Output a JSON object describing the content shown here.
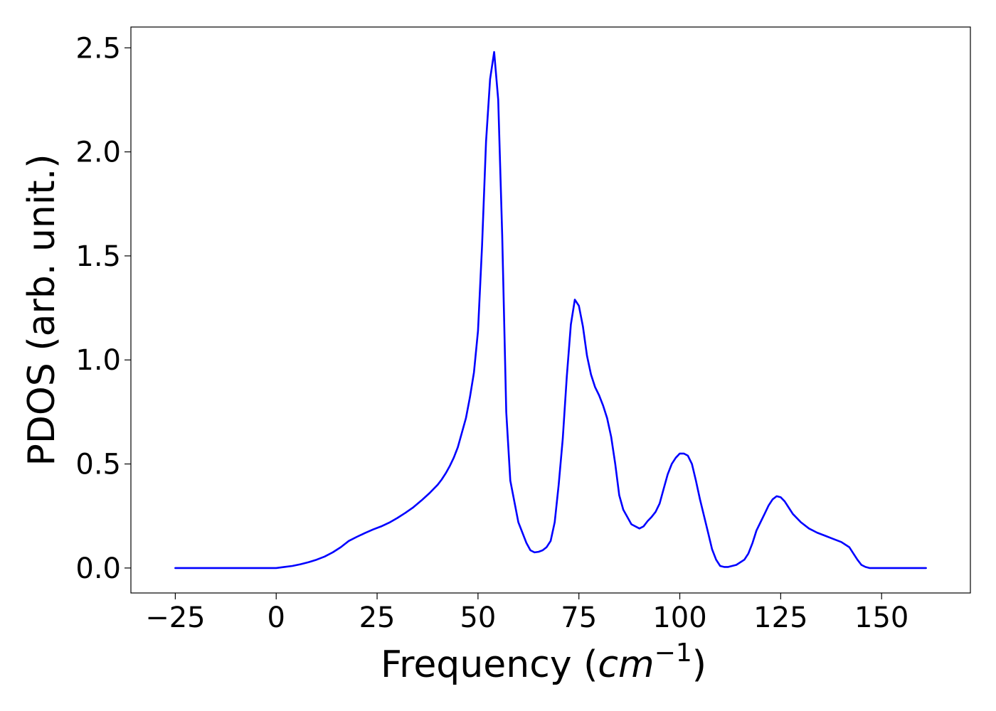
{
  "chart_data": {
    "type": "line",
    "title": "",
    "xlabel": {
      "prefix": "Frequency (",
      "italic": "cm",
      "sup": "−1",
      "suffix": ")"
    },
    "ylabel": "PDOS (arb. unit.)",
    "xlim": [
      -36,
      172
    ],
    "ylim": [
      -0.12,
      2.6
    ],
    "xticks": [
      -25,
      0,
      25,
      50,
      75,
      100,
      125,
      150
    ],
    "xtick_labels": [
      "−25",
      "0",
      "25",
      "50",
      "75",
      "100",
      "125",
      "150"
    ],
    "yticks": [
      0.0,
      0.5,
      1.0,
      1.5,
      2.0,
      2.5
    ],
    "ytick_labels": [
      "0.0",
      "0.5",
      "1.0",
      "1.5",
      "2.0",
      "2.5"
    ],
    "grid": false,
    "legend": false,
    "series": [
      {
        "color": "#0000ff",
        "x": [
          -25,
          -10,
          -5,
          0,
          2,
          4,
          6,
          8,
          10,
          12,
          14,
          16,
          18,
          20,
          22,
          24,
          26,
          28,
          30,
          32,
          34,
          36,
          38,
          40,
          41,
          42,
          43,
          44,
          45,
          46,
          47,
          48,
          49,
          50,
          51,
          52,
          53,
          54,
          55,
          56,
          57,
          58,
          60,
          62,
          63,
          64,
          65,
          66,
          67,
          68,
          69,
          70,
          71,
          72,
          73,
          74,
          75,
          76,
          77,
          78,
          79,
          80,
          81,
          82,
          83,
          84,
          85,
          86,
          88,
          90,
          91,
          92,
          93,
          94,
          95,
          96,
          97,
          98,
          99,
          100,
          101,
          102,
          103,
          104,
          105,
          106,
          107,
          108,
          109,
          110,
          111,
          112,
          114,
          116,
          117,
          118,
          119,
          120,
          121,
          122,
          123,
          124,
          125,
          126,
          127,
          128,
          130,
          132,
          134,
          136,
          138,
          140,
          142,
          143,
          144,
          145,
          146,
          147,
          148,
          150,
          155,
          161
        ],
        "values": [
          0.0,
          0.0,
          0.0,
          0.0,
          0.005,
          0.01,
          0.018,
          0.028,
          0.04,
          0.055,
          0.075,
          0.1,
          0.13,
          0.15,
          0.168,
          0.185,
          0.2,
          0.218,
          0.24,
          0.265,
          0.292,
          0.325,
          0.36,
          0.4,
          0.425,
          0.455,
          0.49,
          0.53,
          0.58,
          0.65,
          0.72,
          0.82,
          0.94,
          1.14,
          1.55,
          2.05,
          2.35,
          2.48,
          2.25,
          1.6,
          0.75,
          0.42,
          0.22,
          0.12,
          0.085,
          0.075,
          0.078,
          0.085,
          0.1,
          0.13,
          0.22,
          0.4,
          0.62,
          0.92,
          1.17,
          1.29,
          1.26,
          1.16,
          1.02,
          0.93,
          0.87,
          0.83,
          0.78,
          0.72,
          0.63,
          0.5,
          0.35,
          0.28,
          0.21,
          0.19,
          0.2,
          0.225,
          0.245,
          0.27,
          0.31,
          0.38,
          0.45,
          0.5,
          0.53,
          0.55,
          0.55,
          0.54,
          0.5,
          0.42,
          0.33,
          0.25,
          0.17,
          0.09,
          0.04,
          0.01,
          0.005,
          0.005,
          0.015,
          0.04,
          0.07,
          0.12,
          0.18,
          0.22,
          0.26,
          0.3,
          0.33,
          0.345,
          0.34,
          0.32,
          0.29,
          0.26,
          0.22,
          0.19,
          0.17,
          0.155,
          0.14,
          0.125,
          0.1,
          0.07,
          0.04,
          0.015,
          0.005,
          0.0,
          0.0,
          0.0,
          0.0,
          0.0
        ]
      }
    ]
  }
}
